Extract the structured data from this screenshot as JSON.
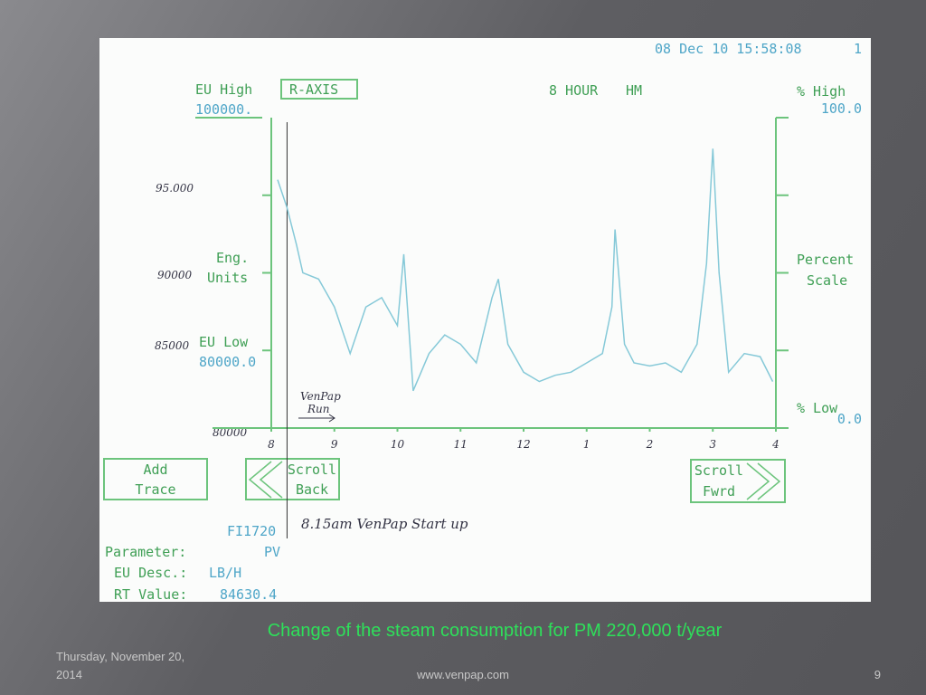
{
  "chart_data": {
    "type": "line",
    "caption": "Change of  the steam consumption for PM 220,000 t/year",
    "timestamp": "08 Dec 10 15:58:08",
    "page_no": "1",
    "title": "8 HOUR",
    "title_suffix": "HM",
    "axis_button": "R-AXIS",
    "left_axis": {
      "high_label": "EU High",
      "high_value": "100000.",
      "label_1": "Eng.",
      "label_2": "Units",
      "low_label": "EU Low",
      "low_value": "80000.0"
    },
    "right_axis": {
      "high_label": "% High",
      "label_1": "Percent",
      "label_2": "Scale",
      "low_label": "% Low"
    },
    "handwritten_left": [
      "95.000",
      "90000",
      "85000",
      "80000"
    ],
    "handwritten_run": [
      "VenPap",
      "Run"
    ],
    "handwritten_note": "8.15am VenPap Start up",
    "cursor_x": 8.25,
    "x": [
      8.1,
      8.25,
      8.4,
      8.5,
      8.75,
      9,
      9.25,
      9.5,
      9.75,
      10,
      10.1,
      10.25,
      10.5,
      10.75,
      11,
      11.25,
      11.5,
      11.6,
      11.75,
      12,
      12.25,
      12.5,
      12.75,
      13,
      13.25,
      13.4,
      13.45,
      13.6,
      13.75,
      14,
      14.25,
      14.5,
      14.75,
      14.9,
      15,
      15.1,
      15.25,
      15.5,
      15.75,
      15.95
    ],
    "values": [
      80,
      71,
      59,
      50,
      48,
      39,
      24,
      39,
      42,
      33,
      56,
      12,
      24,
      30,
      27,
      21,
      42,
      48,
      27,
      18,
      15,
      17,
      18,
      21,
      24,
      39,
      64,
      27,
      21,
      20,
      21,
      18,
      27,
      53,
      90,
      50,
      18,
      24,
      23,
      15
    ],
    "color": "#86c9d8",
    "xlim": [
      8,
      16
    ],
    "xticks": [
      8,
      9,
      10,
      11,
      12,
      {
        "value": 13,
        "label": "1"
      },
      {
        "value": 14,
        "label": "2"
      },
      {
        "value": 15,
        "label": "3"
      },
      {
        "value": 16,
        "label": "4"
      }
    ],
    "ylim": [
      0,
      100
    ],
    "yticks": [
      {
        "value": 0,
        "label": "0.0"
      },
      {
        "value": 100,
        "label": "100.0"
      }
    ],
    "minor_yticks": [
      25,
      50,
      75
    ],
    "buttons": [
      [
        "Add",
        "Trace"
      ],
      [
        "Scroll",
        "Back"
      ],
      [
        "Scroll",
        "Fwrd"
      ]
    ],
    "tag": "FI1720",
    "params": [
      [
        "Parameter:",
        "PV"
      ],
      [
        "EU Desc.:",
        "LB/H"
      ],
      [
        "RT Value:",
        "84630.4"
      ]
    ]
  },
  "footer": {
    "date": [
      "Thursday, November 20,",
      "2014"
    ],
    "site": "www.venpap.com",
    "slide": "9"
  }
}
